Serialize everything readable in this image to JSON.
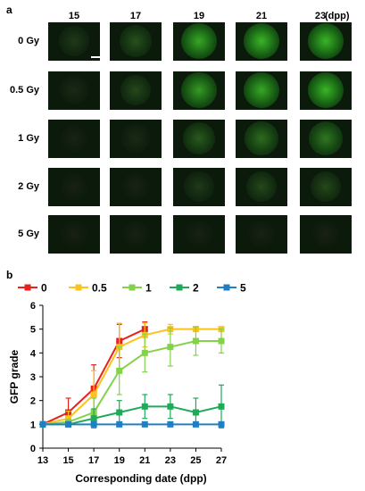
{
  "panel_a": {
    "letter": "a",
    "columns": [
      "15",
      "17",
      "19",
      "21",
      "23"
    ],
    "unit_label": "(dpp)",
    "rows": [
      "0 Gy",
      "0.5 Gy",
      "1 Gy",
      "2 Gy",
      "5 Gy"
    ],
    "intensity": [
      [
        0.3,
        0.45,
        0.85,
        0.9,
        0.9
      ],
      [
        0.15,
        0.4,
        0.8,
        0.85,
        0.9
      ],
      [
        0.08,
        0.15,
        0.5,
        0.6,
        0.65
      ],
      [
        0.06,
        0.08,
        0.3,
        0.4,
        0.4
      ],
      [
        0.04,
        0.05,
        0.06,
        0.06,
        0.07
      ]
    ]
  },
  "panel_b": {
    "letter": "b",
    "chart_data": {
      "type": "line",
      "x": [
        13,
        15,
        17,
        19,
        21,
        23,
        25,
        27
      ],
      "xlabel": "Corresponding  date (dpp)",
      "ylabel": "GFP grade",
      "xlim": [
        13,
        27
      ],
      "ylim": [
        0,
        6
      ],
      "xticks": [
        "13",
        "15",
        "17",
        "19",
        "21",
        "23",
        "25",
        "27"
      ],
      "yticks": [
        "0",
        "1",
        "2",
        "3",
        "4",
        "5",
        "6"
      ],
      "legend_position": "top",
      "series": [
        {
          "name": "0",
          "color": "#e8211d",
          "x": [
            13,
            15,
            17,
            19,
            21
          ],
          "values": [
            1,
            1.5,
            2.5,
            4.5,
            5
          ],
          "errors": [
            0,
            0.6,
            1.0,
            0.7,
            0.3
          ]
        },
        {
          "name": "0.5",
          "color": "#fcc31a",
          "x": [
            13,
            15,
            17,
            19,
            21,
            23,
            25,
            27
          ],
          "values": [
            1,
            1.25,
            2.25,
            4.25,
            4.75,
            5,
            5,
            5
          ],
          "errors": [
            0,
            0.3,
            1.0,
            1.0,
            0.5,
            0.2,
            0,
            0
          ]
        },
        {
          "name": "1",
          "color": "#83d24a",
          "x": [
            13,
            15,
            17,
            19,
            21,
            23,
            25,
            27
          ],
          "values": [
            1,
            1.1,
            1.5,
            3.25,
            4.0,
            4.25,
            4.5,
            4.5
          ],
          "errors": [
            0,
            0.1,
            0.6,
            1.0,
            0.8,
            0.8,
            0.6,
            0.5
          ]
        },
        {
          "name": "2",
          "color": "#1faa59",
          "x": [
            13,
            15,
            17,
            19,
            21,
            23,
            25,
            27
          ],
          "values": [
            1,
            1,
            1.25,
            1.5,
            1.75,
            1.75,
            1.5,
            1.75
          ],
          "errors": [
            0,
            0,
            0.4,
            0.5,
            0.5,
            0.5,
            0.6,
            0.9
          ]
        },
        {
          "name": "5",
          "color": "#1f7fc4",
          "x": [
            13,
            15,
            17,
            19,
            21,
            23,
            25,
            27
          ],
          "values": [
            1,
            1,
            1,
            1,
            1,
            1,
            1,
            1
          ],
          "errors": [
            0,
            0,
            0,
            0,
            0,
            0,
            0,
            0
          ]
        }
      ]
    }
  }
}
